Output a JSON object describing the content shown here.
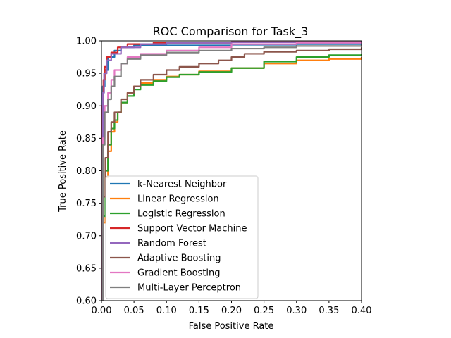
{
  "chart_data": {
    "type": "line",
    "title": "ROC Comparison for Task_3",
    "xlabel": "False Positive Rate",
    "ylabel": "True Positive Rate",
    "xlim": [
      0,
      0.4
    ],
    "ylim": [
      0.6,
      1.0
    ],
    "xticks": [
      "0.00",
      "0.05",
      "0.10",
      "0.15",
      "0.20",
      "0.25",
      "0.30",
      "0.35",
      "0.40"
    ],
    "yticks": [
      "0.60",
      "0.65",
      "0.70",
      "0.75",
      "0.80",
      "0.85",
      "0.90",
      "0.95",
      "1.00"
    ],
    "grid": false,
    "legend_position": "lower-center",
    "series": [
      {
        "name": "k-Nearest Neighbor",
        "color": "#1f77b4",
        "points": [
          [
            0,
            0.6
          ],
          [
            0.002,
            0.93
          ],
          [
            0.005,
            0.955
          ],
          [
            0.01,
            0.975
          ],
          [
            0.02,
            0.985
          ],
          [
            0.03,
            0.99
          ],
          [
            0.05,
            0.993
          ],
          [
            0.1,
            0.993
          ],
          [
            0.2,
            0.994
          ],
          [
            0.3,
            0.995
          ],
          [
            0.4,
            0.997
          ]
        ]
      },
      {
        "name": "Linear Regression",
        "color": "#ff7f0e",
        "points": [
          [
            0,
            0.6
          ],
          [
            0.003,
            0.72
          ],
          [
            0.006,
            0.79
          ],
          [
            0.01,
            0.83
          ],
          [
            0.015,
            0.86
          ],
          [
            0.02,
            0.875
          ],
          [
            0.025,
            0.89
          ],
          [
            0.03,
            0.905
          ],
          [
            0.04,
            0.92
          ],
          [
            0.05,
            0.93
          ],
          [
            0.06,
            0.935
          ],
          [
            0.08,
            0.94
          ],
          [
            0.1,
            0.945
          ],
          [
            0.12,
            0.948
          ],
          [
            0.15,
            0.953
          ],
          [
            0.2,
            0.958
          ],
          [
            0.25,
            0.965
          ],
          [
            0.3,
            0.97
          ],
          [
            0.35,
            0.972
          ],
          [
            0.4,
            0.975
          ]
        ]
      },
      {
        "name": "Logistic Regression",
        "color": "#2ca02c",
        "points": [
          [
            0,
            0.6
          ],
          [
            0.003,
            0.73
          ],
          [
            0.006,
            0.8
          ],
          [
            0.01,
            0.84
          ],
          [
            0.015,
            0.865
          ],
          [
            0.02,
            0.878
          ],
          [
            0.025,
            0.89
          ],
          [
            0.03,
            0.905
          ],
          [
            0.04,
            0.915
          ],
          [
            0.05,
            0.925
          ],
          [
            0.06,
            0.932
          ],
          [
            0.08,
            0.938
          ],
          [
            0.1,
            0.944
          ],
          [
            0.12,
            0.948
          ],
          [
            0.15,
            0.952
          ],
          [
            0.2,
            0.958
          ],
          [
            0.25,
            0.968
          ],
          [
            0.3,
            0.975
          ],
          [
            0.35,
            0.978
          ],
          [
            0.4,
            0.98
          ]
        ]
      },
      {
        "name": "Support Vector Machine",
        "color": "#d62728",
        "points": [
          [
            0,
            0.6
          ],
          [
            0.001,
            0.9
          ],
          [
            0.003,
            0.94
          ],
          [
            0.005,
            0.96
          ],
          [
            0.008,
            0.975
          ],
          [
            0.015,
            0.982
          ],
          [
            0.025,
            0.99
          ],
          [
            0.04,
            0.995
          ],
          [
            0.08,
            0.997
          ],
          [
            0.2,
            0.998
          ],
          [
            0.4,
            1.0
          ]
        ]
      },
      {
        "name": "Random Forest",
        "color": "#9467bd",
        "points": [
          [
            0,
            0.6
          ],
          [
            0.002,
            0.92
          ],
          [
            0.004,
            0.95
          ],
          [
            0.008,
            0.97
          ],
          [
            0.015,
            0.98
          ],
          [
            0.03,
            0.99
          ],
          [
            0.06,
            0.995
          ],
          [
            0.1,
            0.997
          ],
          [
            0.2,
            0.998
          ],
          [
            0.4,
            1.0
          ]
        ]
      },
      {
        "name": "Adaptive Boosting",
        "color": "#8c564b",
        "points": [
          [
            0,
            0.6
          ],
          [
            0.003,
            0.76
          ],
          [
            0.006,
            0.82
          ],
          [
            0.01,
            0.86
          ],
          [
            0.015,
            0.875
          ],
          [
            0.02,
            0.89
          ],
          [
            0.03,
            0.91
          ],
          [
            0.04,
            0.92
          ],
          [
            0.05,
            0.93
          ],
          [
            0.06,
            0.94
          ],
          [
            0.08,
            0.948
          ],
          [
            0.1,
            0.955
          ],
          [
            0.12,
            0.96
          ],
          [
            0.15,
            0.965
          ],
          [
            0.18,
            0.97
          ],
          [
            0.2,
            0.975
          ],
          [
            0.22,
            0.98
          ],
          [
            0.25,
            0.983
          ],
          [
            0.3,
            0.985
          ],
          [
            0.35,
            0.987
          ],
          [
            0.4,
            0.99
          ]
        ]
      },
      {
        "name": "Gradient Boosting",
        "color": "#e377c2",
        "points": [
          [
            0,
            0.6
          ],
          [
            0.002,
            0.85
          ],
          [
            0.005,
            0.9
          ],
          [
            0.01,
            0.92
          ],
          [
            0.015,
            0.94
          ],
          [
            0.02,
            0.955
          ],
          [
            0.03,
            0.965
          ],
          [
            0.04,
            0.975
          ],
          [
            0.06,
            0.98
          ],
          [
            0.1,
            0.985
          ],
          [
            0.15,
            0.99
          ],
          [
            0.2,
            0.995
          ],
          [
            0.3,
            0.997
          ],
          [
            0.4,
            0.998
          ]
        ]
      },
      {
        "name": "Multi-Layer Perceptron",
        "color": "#7f7f7f",
        "points": [
          [
            0,
            0.6
          ],
          [
            0.002,
            0.84
          ],
          [
            0.005,
            0.89
          ],
          [
            0.01,
            0.91
          ],
          [
            0.015,
            0.93
          ],
          [
            0.02,
            0.945
          ],
          [
            0.03,
            0.965
          ],
          [
            0.04,
            0.972
          ],
          [
            0.06,
            0.978
          ],
          [
            0.1,
            0.982
          ],
          [
            0.15,
            0.985
          ],
          [
            0.2,
            0.988
          ],
          [
            0.25,
            0.99
          ],
          [
            0.3,
            0.992
          ],
          [
            0.4,
            0.994
          ]
        ]
      }
    ]
  }
}
